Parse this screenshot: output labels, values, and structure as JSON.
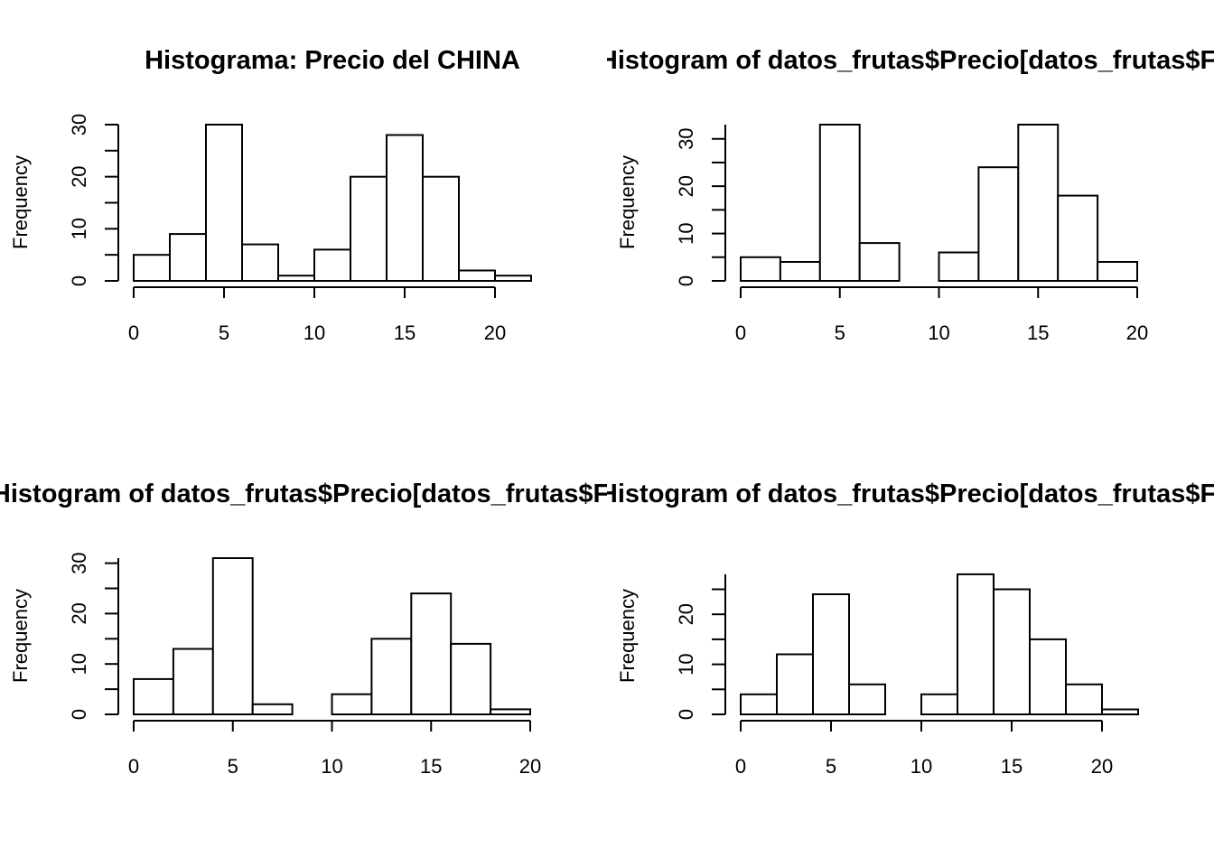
{
  "chart_data": [
    {
      "type": "bar",
      "title": "Histograma: Precio del CHINA",
      "xlabel": "",
      "ylabel": "Frequency",
      "bins": [
        [
          0,
          2
        ],
        [
          2,
          4
        ],
        [
          4,
          6
        ],
        [
          6,
          8
        ],
        [
          8,
          10
        ],
        [
          10,
          12
        ],
        [
          12,
          14
        ],
        [
          14,
          16
        ],
        [
          16,
          18
        ],
        [
          18,
          20
        ],
        [
          20,
          22
        ]
      ],
      "values": [
        5,
        9,
        30,
        7,
        1,
        6,
        20,
        28,
        20,
        2,
        1
      ],
      "xticks": [
        0,
        5,
        10,
        15,
        20
      ],
      "yticks": [
        0,
        10,
        20,
        30
      ],
      "xlim": [
        0,
        22
      ],
      "ylim": [
        0,
        30
      ]
    },
    {
      "type": "bar",
      "title": "Histogram of datos_frutas$Precio[datos_frutas$Frutas",
      "xlabel": "",
      "ylabel": "Frequency",
      "bins": [
        [
          0,
          2
        ],
        [
          2,
          4
        ],
        [
          4,
          6
        ],
        [
          6,
          8
        ],
        [
          8,
          10
        ],
        [
          10,
          12
        ],
        [
          12,
          14
        ],
        [
          14,
          16
        ],
        [
          16,
          18
        ],
        [
          18,
          20
        ]
      ],
      "values": [
        5,
        4,
        33,
        8,
        0,
        6,
        24,
        33,
        18,
        4
      ],
      "xticks": [
        0,
        5,
        10,
        15,
        20
      ],
      "yticks": [
        0,
        10,
        20,
        30
      ],
      "xlim": [
        0,
        20
      ],
      "ylim": [
        0,
        33
      ]
    },
    {
      "type": "bar",
      "title": "Histogram of datos_frutas$Precio[datos_frutas$Frutas",
      "xlabel": "",
      "ylabel": "Frequency",
      "bins": [
        [
          0,
          2
        ],
        [
          2,
          4
        ],
        [
          4,
          6
        ],
        [
          6,
          8
        ],
        [
          8,
          10
        ],
        [
          10,
          12
        ],
        [
          12,
          14
        ],
        [
          14,
          16
        ],
        [
          16,
          18
        ],
        [
          18,
          20
        ]
      ],
      "values": [
        7,
        13,
        31,
        2,
        0,
        4,
        15,
        24,
        14,
        1
      ],
      "xticks": [
        0,
        5,
        10,
        15,
        20
      ],
      "yticks": [
        0,
        10,
        20,
        30
      ],
      "xlim": [
        0,
        20
      ],
      "ylim": [
        0,
        31
      ]
    },
    {
      "type": "bar",
      "title": "Histogram of datos_frutas$Precio[datos_frutas$Frutas",
      "xlabel": "",
      "ylabel": "Frequency",
      "bins": [
        [
          0,
          2
        ],
        [
          2,
          4
        ],
        [
          4,
          6
        ],
        [
          6,
          8
        ],
        [
          8,
          10
        ],
        [
          10,
          12
        ],
        [
          12,
          14
        ],
        [
          14,
          16
        ],
        [
          16,
          18
        ],
        [
          18,
          20
        ],
        [
          20,
          22
        ]
      ],
      "values": [
        4,
        12,
        24,
        6,
        0,
        4,
        28,
        25,
        15,
        6,
        1
      ],
      "xticks": [
        0,
        5,
        10,
        15,
        20
      ],
      "yticks": [
        0,
        10,
        20
      ],
      "xlim": [
        0,
        22
      ],
      "ylim": [
        0,
        28
      ]
    }
  ]
}
